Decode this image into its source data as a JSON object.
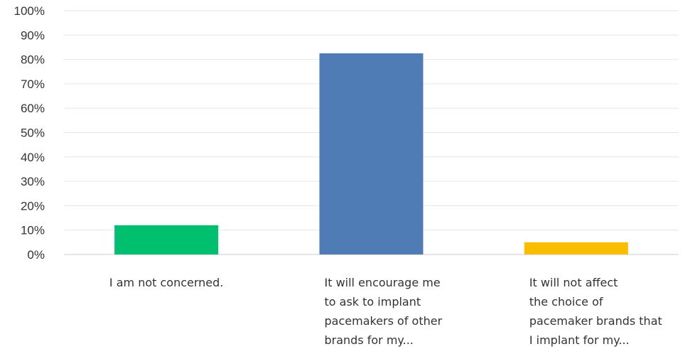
{
  "chart_data": {
    "type": "bar",
    "categories": [
      [
        "I am not concerned."
      ],
      [
        "It will encourage me",
        "to ask to implant",
        "pacemakers of other",
        "brands for my..."
      ],
      [
        "It will not affect",
        "the choice of",
        "pacemaker brands that",
        "I implant for my..."
      ]
    ],
    "values": [
      12,
      82.5,
      5
    ],
    "colors": [
      "#00bf6f",
      "#507cb6",
      "#f9be00"
    ],
    "ylim": [
      0,
      100
    ],
    "yticks": [
      "0%",
      "10%",
      "20%",
      "30%",
      "40%",
      "50%",
      "60%",
      "70%",
      "80%",
      "90%",
      "100%"
    ],
    "grid": true,
    "legend": "none"
  }
}
